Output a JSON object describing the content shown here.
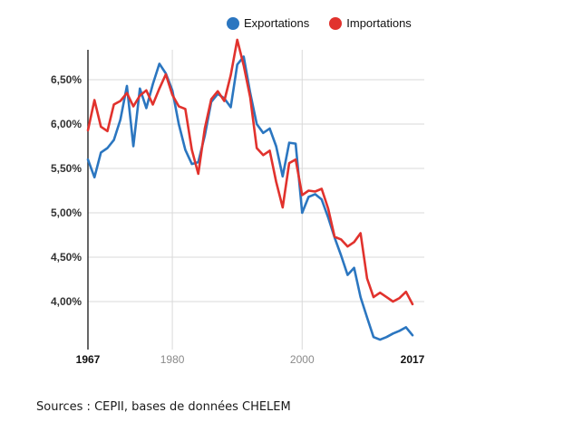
{
  "legend": {
    "items": [
      {
        "label": "Exportations",
        "color": "#2b76c0",
        "icon": "circle"
      },
      {
        "label": "Importations",
        "color": "#e1322d",
        "icon": "circle"
      }
    ]
  },
  "footer": {
    "source": "Sources : CEPII, bases de données CHELEM"
  },
  "colors": {
    "export_blue": "#2b76c0",
    "import_red": "#e1322d",
    "grid": "#d9d9d9",
    "axis": "#333333"
  },
  "chart_data": {
    "type": "line",
    "title": "",
    "xlabel": "",
    "ylabel": "",
    "grid": true,
    "legend_position": "top",
    "ylim": [
      3.5,
      7.0
    ],
    "x": [
      1967,
      1968,
      1969,
      1970,
      1971,
      1972,
      1973,
      1974,
      1975,
      1976,
      1977,
      1978,
      1979,
      1980,
      1981,
      1982,
      1983,
      1984,
      1985,
      1986,
      1987,
      1988,
      1989,
      1990,
      1991,
      1992,
      1993,
      1994,
      1995,
      1996,
      1997,
      1998,
      1999,
      2000,
      2001,
      2002,
      2003,
      2004,
      2005,
      2006,
      2007,
      2008,
      2009,
      2010,
      2011,
      2012,
      2013,
      2014,
      2015,
      2016,
      2017
    ],
    "series": [
      {
        "name": "Exportations",
        "color": "#2b76c0",
        "values": [
          5.6,
          5.4,
          5.68,
          5.73,
          5.82,
          6.05,
          6.43,
          5.75,
          6.4,
          6.18,
          6.45,
          6.68,
          6.57,
          6.38,
          6.0,
          5.71,
          5.55,
          5.57,
          5.87,
          6.25,
          6.34,
          6.29,
          6.19,
          6.67,
          6.76,
          6.35,
          6.0,
          5.9,
          5.95,
          5.75,
          5.41,
          5.79,
          5.78,
          5.0,
          5.18,
          5.21,
          5.15,
          4.95,
          4.72,
          4.52,
          4.3,
          4.38,
          4.05,
          3.82,
          3.6,
          3.57,
          3.6,
          3.64,
          3.67,
          3.71,
          3.62
        ]
      },
      {
        "name": "Importations",
        "color": "#e1322d",
        "values": [
          5.93,
          6.27,
          5.97,
          5.92,
          6.22,
          6.26,
          6.35,
          6.2,
          6.32,
          6.38,
          6.22,
          6.4,
          6.56,
          6.33,
          6.2,
          6.17,
          5.71,
          5.44,
          5.95,
          6.28,
          6.37,
          6.26,
          6.55,
          6.95,
          6.66,
          6.3,
          5.73,
          5.65,
          5.7,
          5.35,
          5.06,
          5.56,
          5.6,
          5.2,
          5.25,
          5.24,
          5.27,
          5.05,
          4.73,
          4.7,
          4.62,
          4.67,
          4.77,
          4.26,
          4.05,
          4.1,
          4.05,
          4.0,
          4.04,
          4.11,
          3.97
        ]
      }
    ],
    "yticks": {
      "values": [
        6.5,
        6.0,
        5.5,
        5.0,
        4.5,
        4.0
      ],
      "labels": [
        "6,50%",
        "6,00%",
        "5,50%",
        "5,00%",
        "4,50%",
        "4,00%"
      ]
    },
    "xticks": {
      "values": [
        1967,
        1980,
        2000,
        2017
      ],
      "labels": [
        "1967",
        "1980",
        "2000",
        "2017"
      ],
      "emphasis": [
        true,
        false,
        false,
        true
      ]
    }
  }
}
